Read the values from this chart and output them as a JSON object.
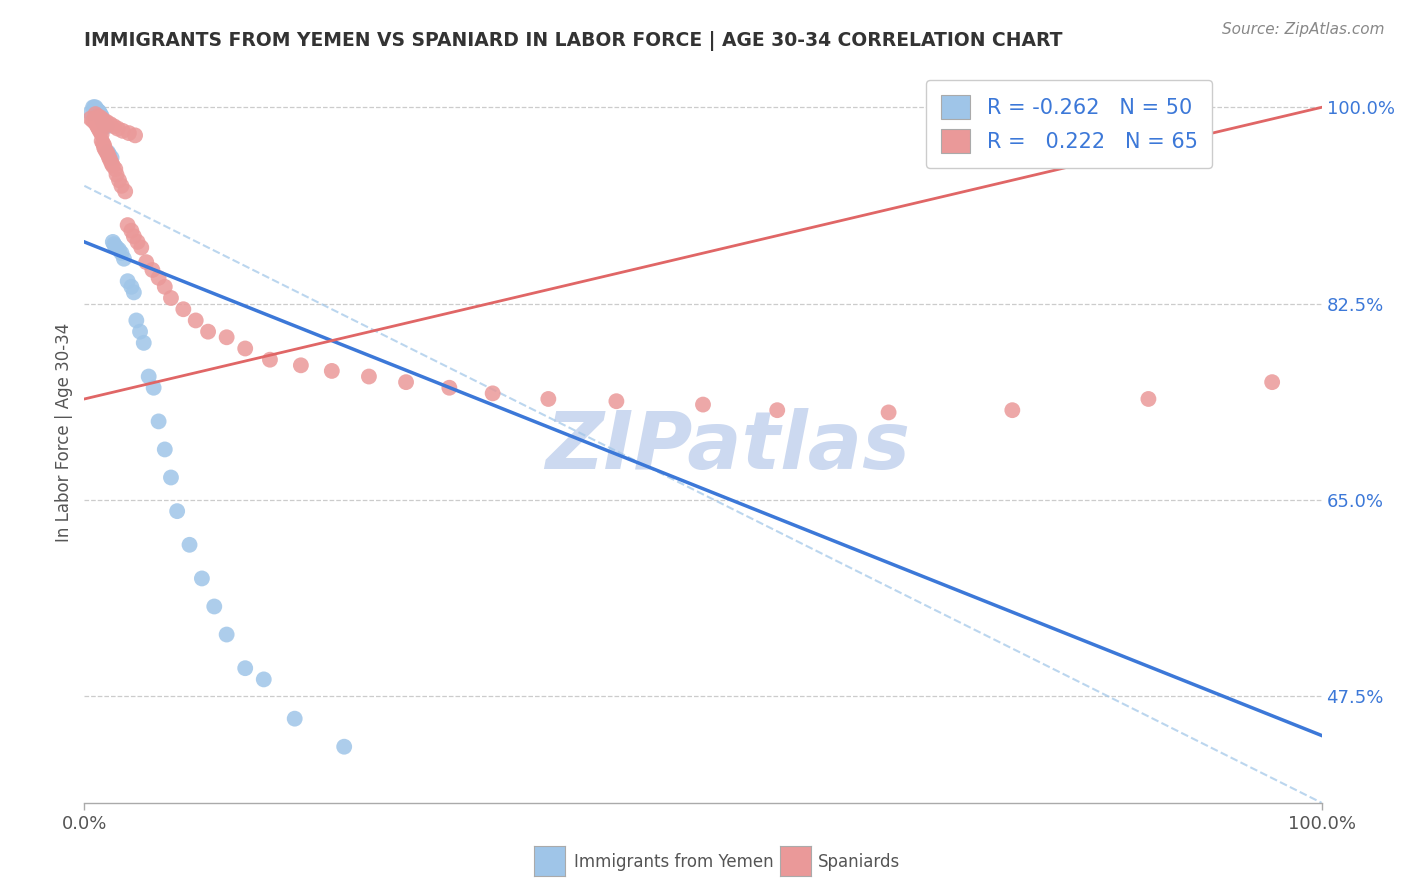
{
  "title": "IMMIGRANTS FROM YEMEN VS SPANIARD IN LABOR FORCE | AGE 30-34 CORRELATION CHART",
  "source": "Source: ZipAtlas.com",
  "ylabel": "In Labor Force | Age 30-34",
  "blue_color": "#9fc5e8",
  "pink_color": "#ea9999",
  "blue_line_color": "#3c78d8",
  "pink_line_color": "#e06666",
  "dashed_line_color": "#9fc5e8",
  "grid_color": "#cccccc",
  "background_color": "#ffffff",
  "watermark_color": "#ccd9f0",
  "right_tick_color": "#3c78d8",
  "xlim": [
    0.0,
    1.0
  ],
  "ylim": [
    0.38,
    1.04
  ],
  "blue_trend_x": [
    0.0,
    1.0
  ],
  "blue_trend_y": [
    0.88,
    0.44
  ],
  "pink_trend_x": [
    0.0,
    1.0
  ],
  "pink_trend_y": [
    0.74,
    1.0
  ],
  "dashed_trend_x": [
    0.0,
    1.0
  ],
  "dashed_trend_y": [
    0.93,
    0.38
  ],
  "grid_yticks": [
    0.475,
    0.65,
    0.825,
    1.0
  ],
  "right_ytick_labels": [
    "47.5%",
    "65.0%",
    "82.5%",
    "100.0%"
  ],
  "blue_x": [
    0.005,
    0.007,
    0.008,
    0.009,
    0.01,
    0.01,
    0.011,
    0.012,
    0.012,
    0.013,
    0.013,
    0.014,
    0.014,
    0.015,
    0.015,
    0.016,
    0.016,
    0.017,
    0.018,
    0.019,
    0.02,
    0.02,
    0.022,
    0.023,
    0.024,
    0.025,
    0.026,
    0.028,
    0.03,
    0.032,
    0.035,
    0.038,
    0.04,
    0.042,
    0.045,
    0.048,
    0.052,
    0.056,
    0.06,
    0.065,
    0.07,
    0.075,
    0.085,
    0.095,
    0.105,
    0.115,
    0.13,
    0.145,
    0.17,
    0.21
  ],
  "blue_y": [
    0.995,
    1.0,
    1.0,
    1.0,
    0.998,
    0.997,
    0.997,
    0.996,
    0.995,
    0.994,
    0.993,
    0.992,
    0.99,
    0.988,
    0.987,
    0.986,
    0.985,
    0.984,
    0.983,
    0.96,
    0.958,
    0.957,
    0.955,
    0.88,
    0.878,
    0.876,
    0.875,
    0.873,
    0.87,
    0.865,
    0.845,
    0.84,
    0.835,
    0.81,
    0.8,
    0.79,
    0.76,
    0.75,
    0.72,
    0.695,
    0.67,
    0.64,
    0.61,
    0.58,
    0.555,
    0.53,
    0.5,
    0.49,
    0.455,
    0.43
  ],
  "pink_x": [
    0.005,
    0.007,
    0.009,
    0.01,
    0.011,
    0.012,
    0.013,
    0.014,
    0.014,
    0.015,
    0.016,
    0.016,
    0.017,
    0.018,
    0.019,
    0.02,
    0.021,
    0.022,
    0.023,
    0.025,
    0.026,
    0.028,
    0.03,
    0.033,
    0.035,
    0.038,
    0.04,
    0.043,
    0.046,
    0.05,
    0.055,
    0.06,
    0.065,
    0.07,
    0.08,
    0.09,
    0.1,
    0.115,
    0.13,
    0.15,
    0.175,
    0.2,
    0.23,
    0.26,
    0.295,
    0.33,
    0.375,
    0.43,
    0.5,
    0.56,
    0.65,
    0.75,
    0.86,
    0.96,
    0.009,
    0.011,
    0.013,
    0.015,
    0.018,
    0.021,
    0.024,
    0.027,
    0.031,
    0.036,
    0.041
  ],
  "pink_y": [
    0.99,
    0.988,
    0.986,
    0.984,
    0.982,
    0.98,
    0.978,
    0.976,
    0.97,
    0.968,
    0.966,
    0.964,
    0.962,
    0.96,
    0.958,
    0.955,
    0.953,
    0.95,
    0.948,
    0.945,
    0.94,
    0.935,
    0.93,
    0.925,
    0.895,
    0.89,
    0.885,
    0.88,
    0.875,
    0.862,
    0.855,
    0.848,
    0.84,
    0.83,
    0.82,
    0.81,
    0.8,
    0.795,
    0.785,
    0.775,
    0.77,
    0.765,
    0.76,
    0.755,
    0.75,
    0.745,
    0.74,
    0.738,
    0.735,
    0.73,
    0.728,
    0.73,
    0.74,
    0.755,
    0.994,
    0.992,
    0.991,
    0.989,
    0.987,
    0.985,
    0.983,
    0.981,
    0.979,
    0.977,
    0.975
  ]
}
